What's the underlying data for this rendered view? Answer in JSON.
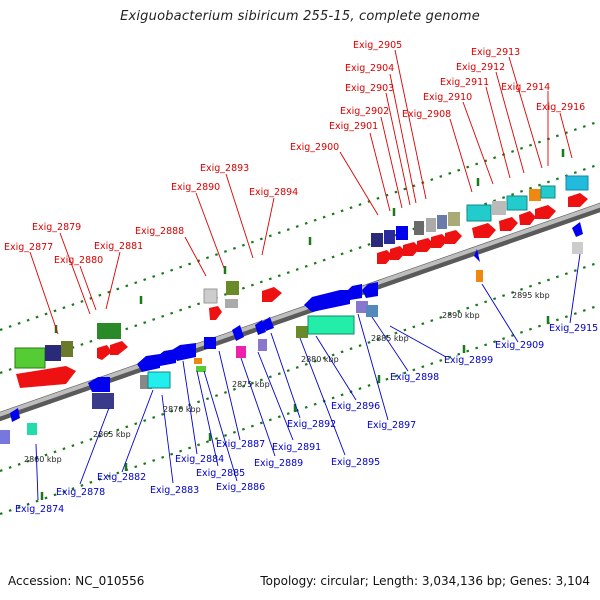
{
  "title": "Exiguobacterium sibiricum 255-15, complete genome",
  "accession": "Accession: NC_010556",
  "summary": "Topology: circular; Length: 3,034,136 bp; Genes: 3,104",
  "colors": {
    "top_label": "#dd0000",
    "bottom_label": "#0000cc",
    "backbone": "#8a8a8a",
    "tick": "#1a7a1a"
  },
  "kbp_ticks": [
    "2860 kbp",
    "2865 kbp",
    "2870 kbp",
    "2875 kbp",
    "2880 kbp",
    "2885 kbp",
    "2890 kbp",
    "2895 kbp"
  ],
  "top_labels": [
    "Exig_2877",
    "Exig_2879",
    "Exig_2880",
    "Exig_2881",
    "Exig_2888",
    "Exig_2890",
    "Exig_2893",
    "Exig_2894",
    "Exig_2900",
    "Exig_2901",
    "Exig_2902",
    "Exig_2903",
    "Exig_2904",
    "Exig_2905",
    "Exig_2908",
    "Exig_2910",
    "Exig_2911",
    "Exig_2912",
    "Exig_2913",
    "Exig_2914",
    "Exig_2916"
  ],
  "bottom_labels": [
    "Exig_2874",
    "Exig_2878",
    "Exig_2882",
    "Exig_2883",
    "Exig_2884",
    "Exig_2885",
    "Exig_2886",
    "Exig_2887",
    "Exig_2889",
    "Exig_2891",
    "Exig_2892",
    "Exig_2895",
    "Exig_2896",
    "Exig_2897",
    "Exig_2898",
    "Exig_2899",
    "Exig_2909",
    "Exig_2915"
  ]
}
